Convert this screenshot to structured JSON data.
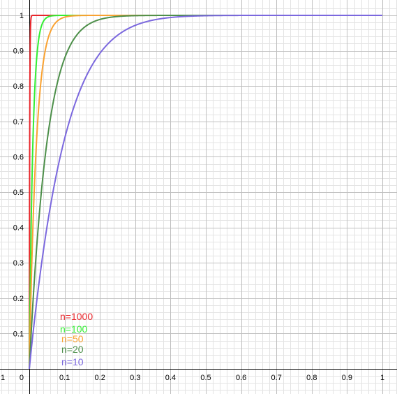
{
  "chart_data": {
    "type": "line",
    "function": "y = 1 - (1 - x)^n",
    "xlim": [
      -0.08,
      1.04
    ],
    "ylim": [
      -0.07,
      1.03
    ],
    "x_ticks": [
      "0.1",
      "0.2",
      "0.3",
      "0.4",
      "0.5",
      "0.6",
      "0.7",
      "0.8",
      "0.9",
      "1"
    ],
    "x_tick_values": [
      0.1,
      0.2,
      0.3,
      0.4,
      0.5,
      0.6,
      0.7,
      0.8,
      0.9,
      1
    ],
    "left_edge_tick": "1",
    "origin_label": "0",
    "y_ticks": [
      "0.1",
      "0.2",
      "0.3",
      "0.4",
      "0.5",
      "0.6",
      "0.7",
      "0.8",
      "0.9",
      "1"
    ],
    "y_tick_values": [
      0.1,
      0.2,
      0.3,
      0.4,
      0.5,
      0.6,
      0.7,
      0.8,
      0.9,
      1
    ],
    "grid": true,
    "series": [
      {
        "name": "n=1000",
        "n": 1000,
        "color": "#e8262b"
      },
      {
        "name": "n=100",
        "n": 100,
        "color": "#33ee33"
      },
      {
        "name": "n=50",
        "n": 50,
        "color": "#f9a232"
      },
      {
        "name": "n=20",
        "n": 20,
        "color": "#4d8f4a"
      },
      {
        "name": "n=10",
        "n": 10,
        "color": "#7b68de"
      }
    ],
    "legend_placement": "bottom-left, inside plot near origin"
  }
}
